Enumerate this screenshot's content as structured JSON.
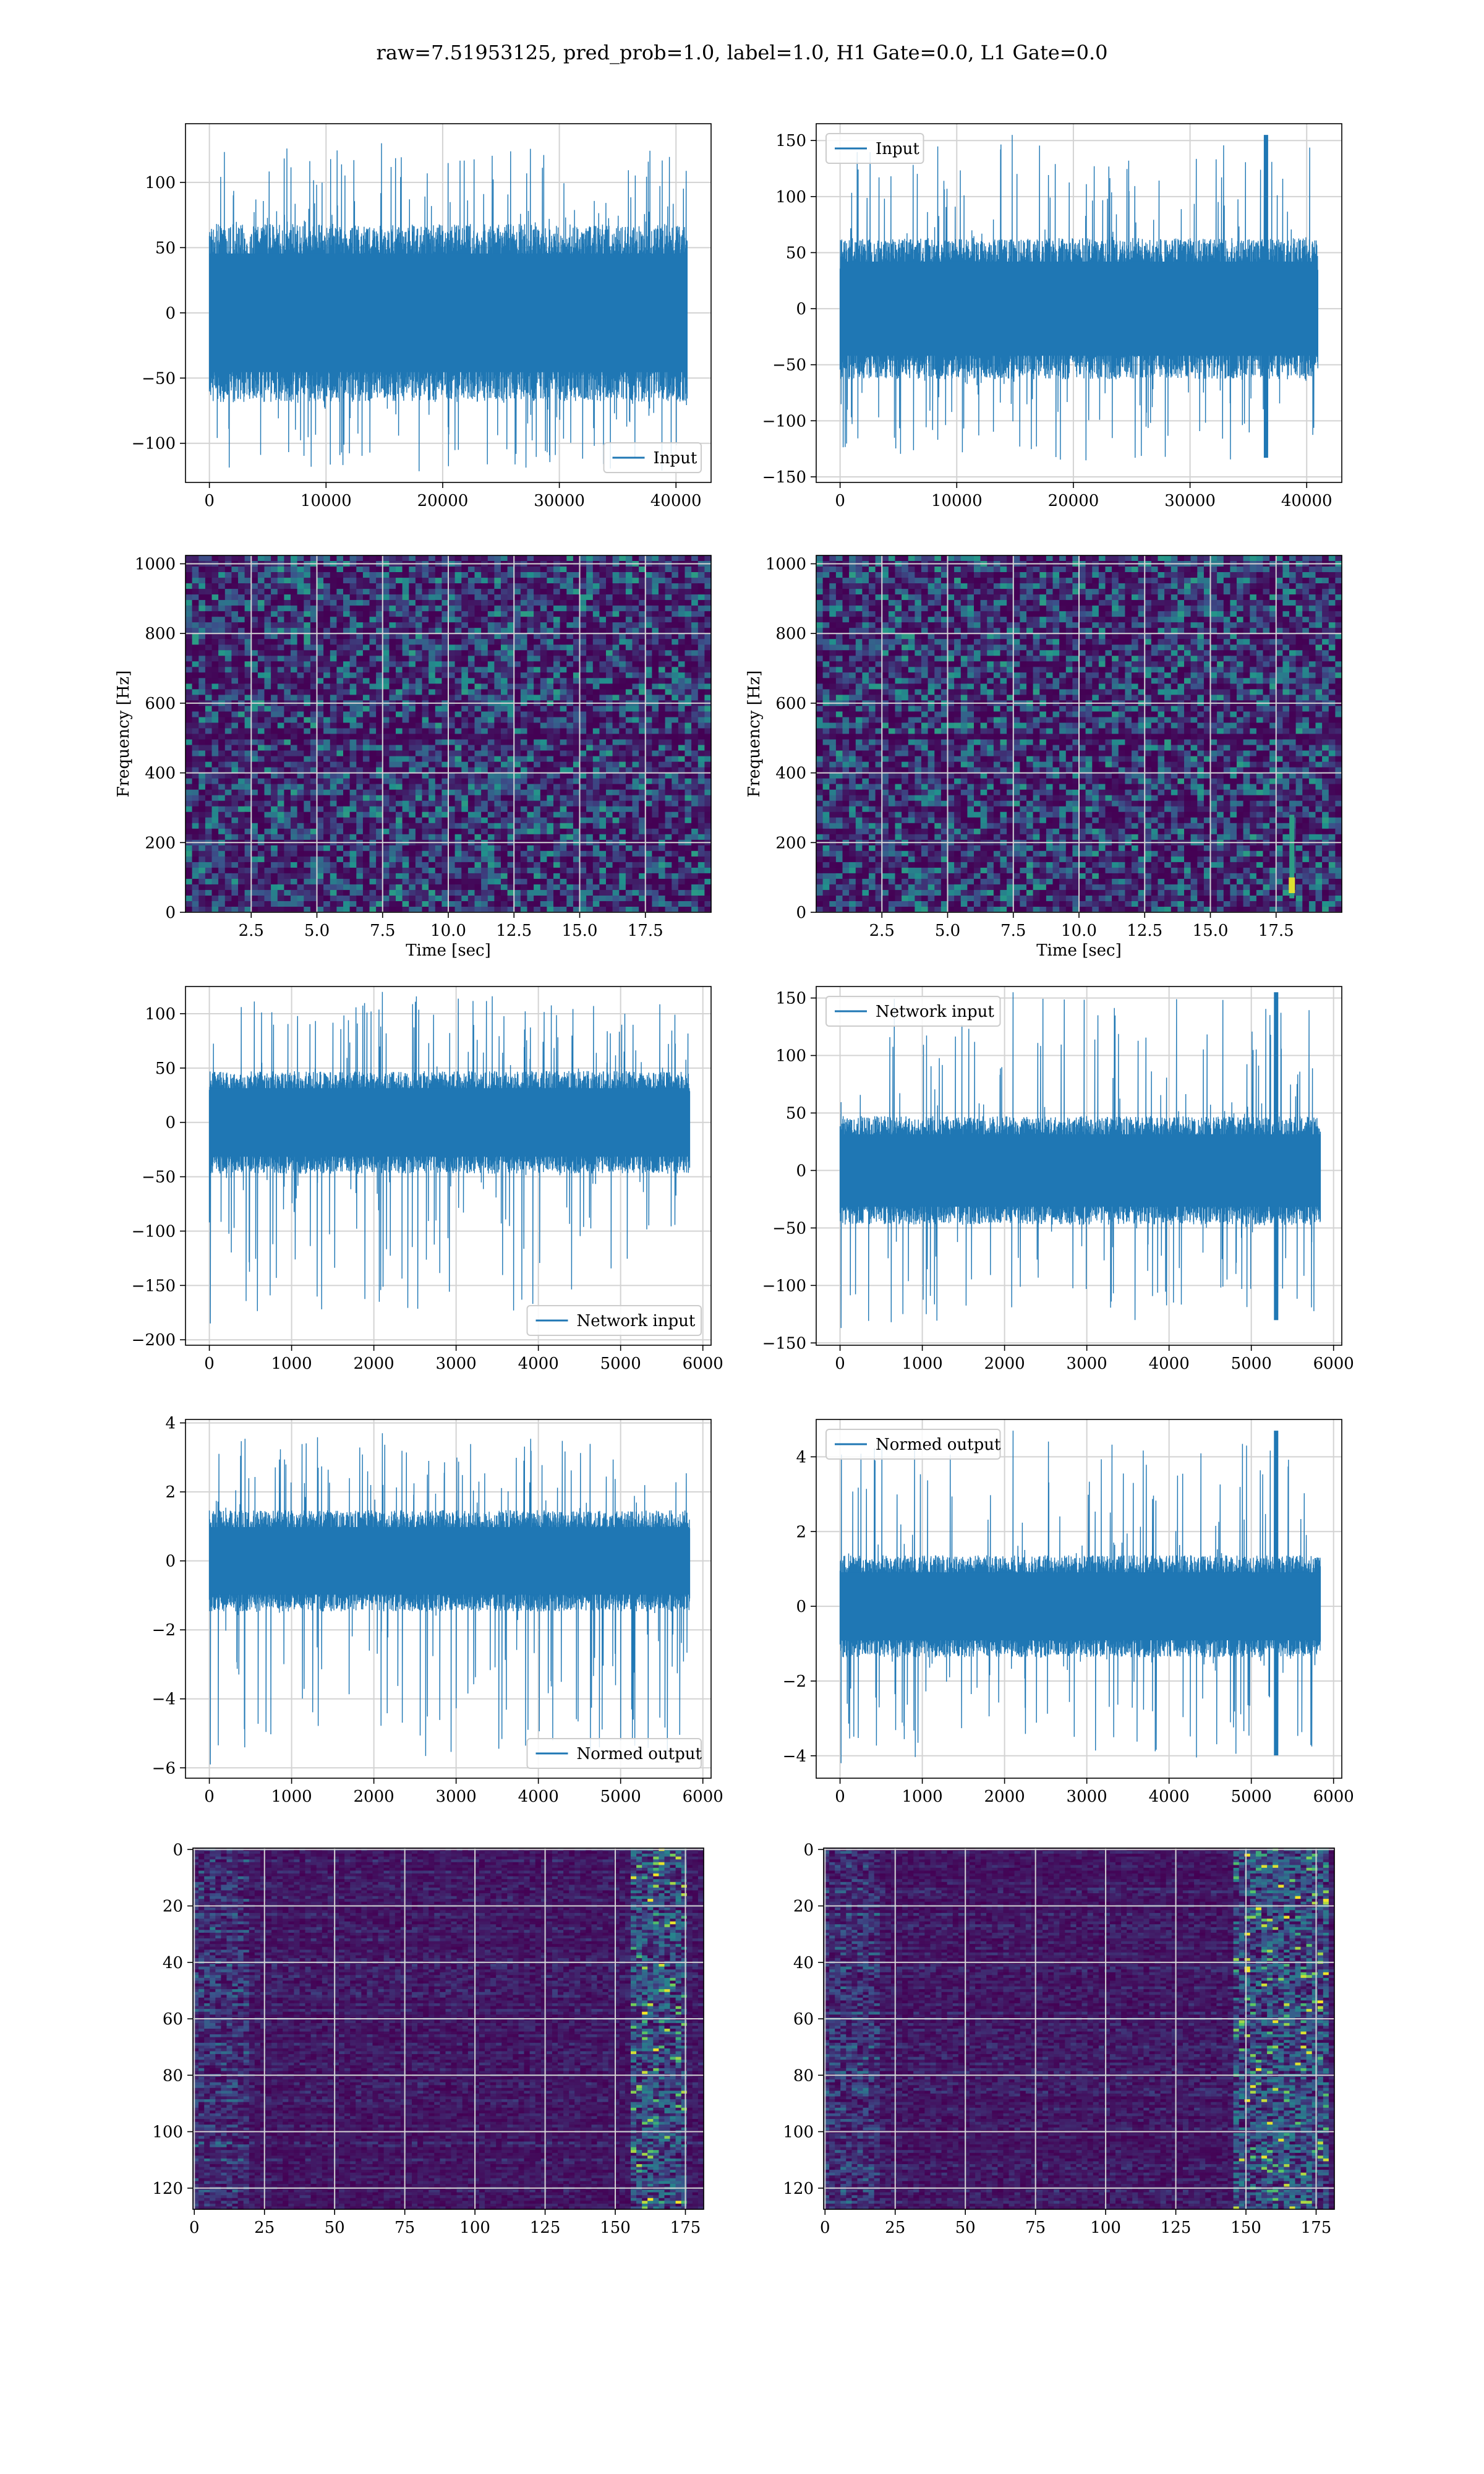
{
  "suptitle": "raw=7.51953125, pred_prob=1.0, label=1.0, H1 Gate=0.0, L1 Gate=0.0",
  "colors": {
    "line": "#1f77b4",
    "grid": "#d3d3d3",
    "viridis_low": "#440154",
    "viridis_mid": "#21918c",
    "viridis_high": "#fde725"
  },
  "chart_data": [
    {
      "id": "input-h1",
      "type": "line",
      "xlim": [
        -2048,
        43008
      ],
      "ylim": [
        -130,
        145
      ],
      "xticks": [
        0,
        10000,
        20000,
        30000,
        40000
      ],
      "yticks": [
        -100,
        -50,
        0,
        50,
        100
      ],
      "grid": true,
      "legend": "lower-right",
      "series": [
        {
          "name": "Input",
          "x_range": [
            0,
            40959
          ],
          "band": [
            -65,
            65
          ],
          "spike_max": 130,
          "spike_min": -125
        }
      ]
    },
    {
      "id": "input-l1",
      "type": "line",
      "xlim": [
        -2048,
        43008
      ],
      "ylim": [
        -155,
        165
      ],
      "xticks": [
        0,
        10000,
        20000,
        30000,
        40000
      ],
      "yticks": [
        -150,
        -100,
        -50,
        0,
        50,
        100,
        150
      ],
      "grid": true,
      "legend": "upper-left",
      "series": [
        {
          "name": "Input",
          "x_range": [
            0,
            40959
          ],
          "band": [
            -60,
            60
          ],
          "spike_max": 155,
          "spike_min": -140,
          "burst_x": 36500
        }
      ]
    },
    {
      "id": "spectrogram-h1",
      "type": "heatmap",
      "xlim": [
        0,
        20
      ],
      "ylim": [
        0,
        1024
      ],
      "xticks": [
        2.5,
        5.0,
        7.5,
        10.0,
        12.5,
        15.0,
        17.5
      ],
      "yticks": [
        0,
        200,
        400,
        600,
        800,
        1000
      ],
      "xlabel": "Time [sec]",
      "ylabel": "Frequency [Hz]",
      "grid": true,
      "cmap": "viridis",
      "dark_band_hz": 500
    },
    {
      "id": "spectrogram-l1",
      "type": "heatmap",
      "xlim": [
        0,
        20
      ],
      "ylim": [
        0,
        1024
      ],
      "xticks": [
        2.5,
        5.0,
        7.5,
        10.0,
        12.5,
        15.0,
        17.5
      ],
      "yticks": [
        0,
        200,
        400,
        600,
        800,
        1000
      ],
      "xlabel": "Time [sec]",
      "ylabel": "Frequency [Hz]",
      "grid": true,
      "cmap": "viridis",
      "dark_band_hz": 500,
      "chirp": {
        "t": 18.1,
        "f_low": 40,
        "f_high": 280
      }
    },
    {
      "id": "network-input-h1",
      "type": "line",
      "xlim": [
        -290,
        6100
      ],
      "ylim": [
        -205,
        125
      ],
      "xticks": [
        0,
        1000,
        2000,
        3000,
        4000,
        5000,
        6000
      ],
      "yticks": [
        -200,
        -150,
        -100,
        -50,
        0,
        50,
        100
      ],
      "grid": true,
      "legend": "lower-right",
      "series": [
        {
          "name": "Network input",
          "x_range": [
            0,
            5840
          ],
          "band": [
            -45,
            45
          ],
          "spike_max": 120,
          "spike_min": -185
        }
      ]
    },
    {
      "id": "network-input-l1",
      "type": "line",
      "xlim": [
        -290,
        6100
      ],
      "ylim": [
        -152,
        160
      ],
      "xticks": [
        0,
        1000,
        2000,
        3000,
        4000,
        5000,
        6000
      ],
      "yticks": [
        -150,
        -100,
        -50,
        0,
        50,
        100,
        150
      ],
      "grid": true,
      "legend": "upper-left",
      "series": [
        {
          "name": "Network input",
          "x_range": [
            0,
            5840
          ],
          "band": [
            -45,
            45
          ],
          "spike_max": 155,
          "spike_min": -137,
          "burst_x": 5300
        }
      ]
    },
    {
      "id": "normed-output-h1",
      "type": "line",
      "xlim": [
        -290,
        6100
      ],
      "ylim": [
        -6.3,
        4.1
      ],
      "xticks": [
        0,
        1000,
        2000,
        3000,
        4000,
        5000,
        6000
      ],
      "yticks": [
        -6,
        -4,
        -2,
        0,
        2,
        4
      ],
      "grid": true,
      "legend": "lower-right",
      "series": [
        {
          "name": "Normed output",
          "x_range": [
            0,
            5840
          ],
          "band": [
            -1.4,
            1.4
          ],
          "spike_max": 3.7,
          "spike_min": -5.9
        }
      ]
    },
    {
      "id": "normed-output-l1",
      "type": "line",
      "xlim": [
        -290,
        6100
      ],
      "ylim": [
        -4.6,
        5.0
      ],
      "xticks": [
        0,
        1000,
        2000,
        3000,
        4000,
        5000,
        6000
      ],
      "yticks": [
        -4,
        -2,
        0,
        2,
        4
      ],
      "grid": true,
      "legend": "upper-left",
      "series": [
        {
          "name": "Normed output",
          "x_range": [
            0,
            5840
          ],
          "band": [
            -1.3,
            1.3
          ],
          "spike_max": 4.7,
          "spike_min": -4.2,
          "burst_x": 5300
        }
      ]
    },
    {
      "id": "embedding-h1",
      "type": "heatmap",
      "xlim": [
        -0.5,
        181.5
      ],
      "ylim": [
        127.5,
        -0.5
      ],
      "xticks": [
        0,
        25,
        50,
        75,
        100,
        125,
        150,
        175
      ],
      "yticks": [
        0,
        20,
        40,
        60,
        80,
        100,
        120
      ],
      "grid": true,
      "cmap": "viridis",
      "hot_columns": [
        155,
        175
      ]
    },
    {
      "id": "embedding-l1",
      "type": "heatmap",
      "xlim": [
        -0.5,
        181.5
      ],
      "ylim": [
        127.5,
        -0.5
      ],
      "xticks": [
        0,
        25,
        50,
        75,
        100,
        125,
        150,
        175
      ],
      "yticks": [
        0,
        20,
        40,
        60,
        80,
        100,
        120
      ],
      "grid": true,
      "cmap": "viridis",
      "hot_columns": [
        145,
        178
      ]
    }
  ]
}
